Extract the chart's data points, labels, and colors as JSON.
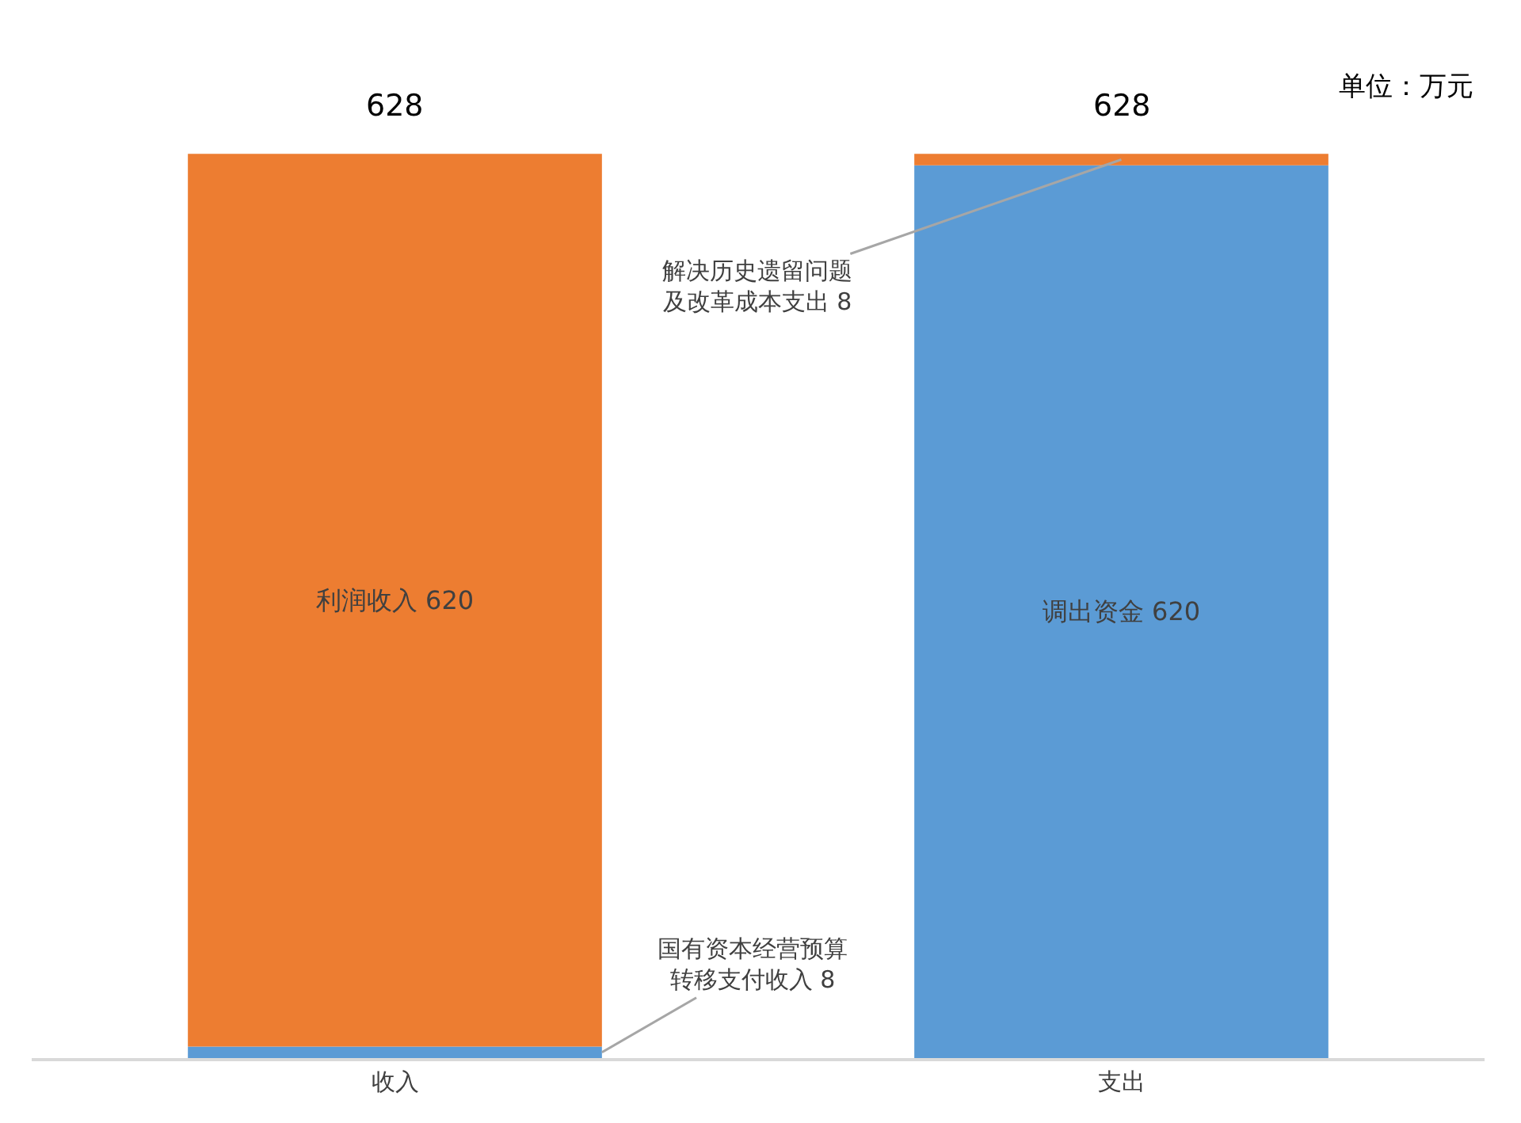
{
  "chart_data": {
    "type": "bar",
    "stacked": true,
    "categories": [
      "收入",
      "支出"
    ],
    "series": [
      {
        "color": "#5b9bd5",
        "values": [
          8,
          620
        ],
        "value_labels": [
          "国有资本经营预算转移支付收入 8",
          "调出资金 620"
        ]
      },
      {
        "color": "#ed7d31",
        "values": [
          620,
          8
        ],
        "value_labels": [
          "利润收入 620",
          "解决历史遗留问题及改革成本支出 8"
        ]
      }
    ],
    "totals": [
      "628",
      "628"
    ],
    "annotations": [
      "单位：万元"
    ]
  }
}
